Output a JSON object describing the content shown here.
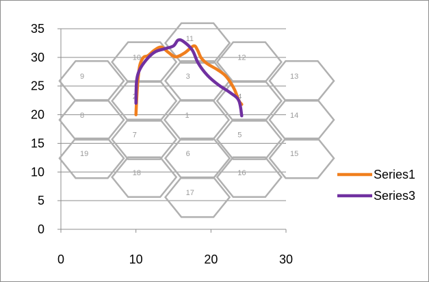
{
  "chart_data": {
    "type": "scatter",
    "title": "",
    "xlabel": "",
    "ylabel": "",
    "xlim": [
      0,
      30
    ],
    "ylim": [
      0,
      35
    ],
    "x_ticks": [
      0,
      10,
      20,
      30
    ],
    "y_ticks": [
      0,
      5,
      10,
      15,
      20,
      25,
      30,
      35
    ],
    "grid": "horizontal",
    "legend": "right",
    "background_hexagons": [
      {
        "label": "1",
        "x": 18.1,
        "y": 19.1
      },
      {
        "label": "2",
        "x": 11.1,
        "y": 22.4
      },
      {
        "label": "3",
        "x": 18.2,
        "y": 25.9
      },
      {
        "label": "4",
        "x": 25.1,
        "y": 22.4
      },
      {
        "label": "5",
        "x": 25.1,
        "y": 15.7
      },
      {
        "label": "6",
        "x": 18.2,
        "y": 12.4
      },
      {
        "label": "7",
        "x": 11.1,
        "y": 15.7
      },
      {
        "label": "8",
        "x": 4.1,
        "y": 19.1
      },
      {
        "label": "9",
        "x": 4.1,
        "y": 25.9
      },
      {
        "label": "10",
        "x": 11.1,
        "y": 29.2
      },
      {
        "label": "11",
        "x": 18.2,
        "y": 32.5
      },
      {
        "label": "12",
        "x": 25.1,
        "y": 29.2
      },
      {
        "label": "13",
        "x": 32.1,
        "y": 25.9
      },
      {
        "label": "14",
        "x": 32.1,
        "y": 19.1
      },
      {
        "label": "15",
        "x": 32.1,
        "y": 12.4
      },
      {
        "label": "16",
        "x": 25.1,
        "y": 9.1
      },
      {
        "label": "17",
        "x": 18.2,
        "y": 5.6
      },
      {
        "label": "18",
        "x": 11.1,
        "y": 9.1
      },
      {
        "label": "19",
        "x": 4.1,
        "y": 12.4
      }
    ],
    "series": [
      {
        "name": "Series1",
        "color": "#F07F1E",
        "x": [
          10.0,
          10.2,
          10.5,
          11.0,
          11.6,
          12.5,
          13.4,
          14.3,
          15.3,
          16.5,
          17.7,
          18.2,
          18.7,
          19.5,
          20.8,
          22.0,
          23.1,
          23.7,
          24.1
        ],
        "y": [
          20.0,
          25.0,
          28.5,
          30.0,
          30.3,
          31.3,
          31.8,
          30.9,
          30.1,
          30.8,
          32.0,
          31.3,
          29.9,
          28.9,
          27.9,
          26.7,
          24.5,
          22.5,
          21.8
        ]
      },
      {
        "name": "Series3",
        "color": "#7030A0",
        "x": [
          10.0,
          10.1,
          10.6,
          11.6,
          12.6,
          13.8,
          15.0,
          15.6,
          16.3,
          17.5,
          18.3,
          19.5,
          21.0,
          22.5,
          23.7,
          24.1
        ],
        "y": [
          22.0,
          26.0,
          28.1,
          29.9,
          31.0,
          31.5,
          32.0,
          33.0,
          32.8,
          31.3,
          29.0,
          26.9,
          25.2,
          23.9,
          22.5,
          19.8
        ]
      }
    ]
  }
}
